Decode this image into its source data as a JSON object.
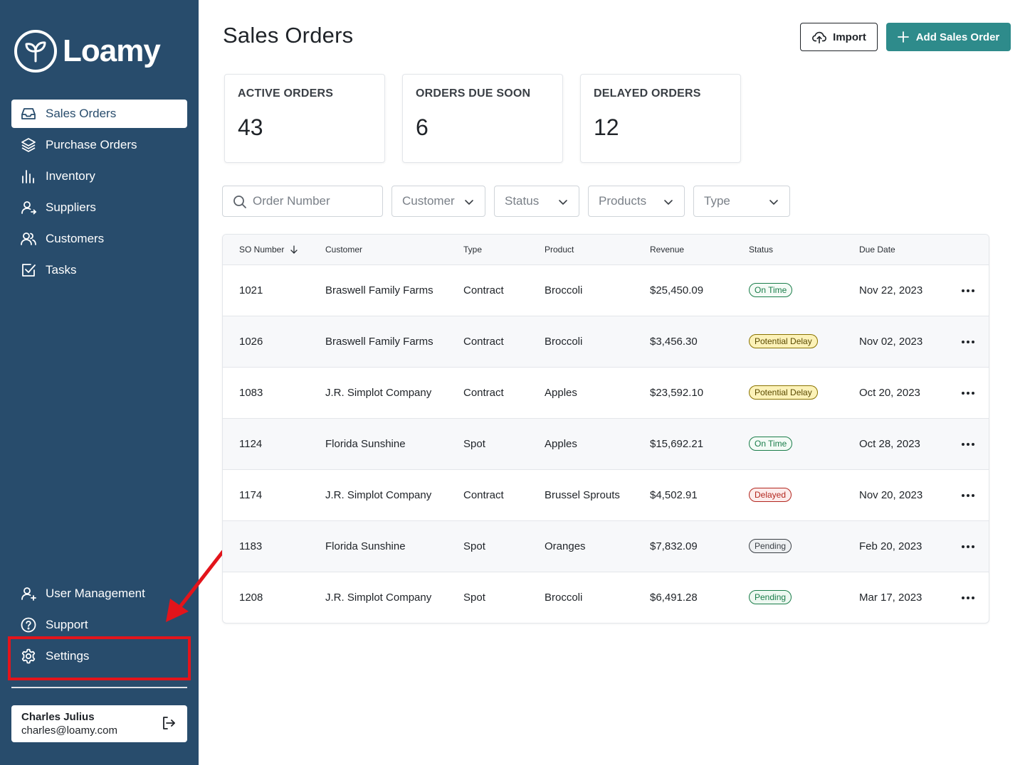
{
  "brand": {
    "name": "Loamy"
  },
  "sidebar": {
    "items": [
      {
        "label": "Sales Orders",
        "icon": "inbox-icon",
        "active": true
      },
      {
        "label": "Purchase Orders",
        "icon": "layers-icon"
      },
      {
        "label": "Inventory",
        "icon": "bar-chart-icon"
      },
      {
        "label": "Suppliers",
        "icon": "user-arrow-icon"
      },
      {
        "label": "Customers",
        "icon": "users-icon"
      },
      {
        "label": "Tasks",
        "icon": "checkbox-icon"
      }
    ],
    "bottom_items": [
      {
        "label": "User Management",
        "icon": "user-plus-icon"
      },
      {
        "label": "Support",
        "icon": "help-circle-icon"
      },
      {
        "label": "Settings",
        "icon": "gear-icon"
      }
    ],
    "user": {
      "name": "Charles Julius",
      "email": "charles@loamy.com"
    }
  },
  "header": {
    "title": "Sales Orders",
    "import_label": "Import",
    "add_label": "Add Sales Order"
  },
  "stats": [
    {
      "label": "ACTIVE ORDERS",
      "value": "43"
    },
    {
      "label": "ORDERS DUE SOON",
      "value": "6"
    },
    {
      "label": "DELAYED ORDERS",
      "value": "12"
    }
  ],
  "filters": {
    "search_placeholder": "Order Number",
    "customer": "Customer",
    "status": "Status",
    "products": "Products",
    "type": "Type"
  },
  "table": {
    "columns": [
      "SO Number",
      "Customer",
      "Type",
      "Product",
      "Revenue",
      "Status",
      "Due Date"
    ],
    "rows": [
      {
        "so": "1021",
        "customer": "Braswell Family Farms",
        "type": "Contract",
        "product": "Broccoli",
        "revenue": "$25,450.09",
        "status": "On Time",
        "due": "Nov 22, 2023"
      },
      {
        "so": "1026",
        "customer": "Braswell Family Farms",
        "type": "Contract",
        "product": "Broccoli",
        "revenue": "$3,456.30",
        "status": "Potential Delay",
        "due": "Nov 02, 2023"
      },
      {
        "so": "1083",
        "customer": "J.R. Simplot Company",
        "type": "Contract",
        "product": "Apples",
        "revenue": "$23,592.10",
        "status": "Potential Delay",
        "due": "Oct 20, 2023"
      },
      {
        "so": "1124",
        "customer": "Florida Sunshine",
        "type": "Spot",
        "product": "Apples",
        "revenue": "$15,692.21",
        "status": "On Time",
        "due": "Oct 28, 2023"
      },
      {
        "so": "1174",
        "customer": "J.R. Simplot Company",
        "type": "Contract",
        "product": "Brussel Sprouts",
        "revenue": "$4,502.91",
        "status": "Delayed",
        "due": "Nov 20, 2023"
      },
      {
        "so": "1183",
        "customer": "Florida Sunshine",
        "type": "Spot",
        "product": "Oranges",
        "revenue": "$7,832.09",
        "status": "Pending",
        "due": "Feb 20, 2023"
      },
      {
        "so": "1208",
        "customer": "J.R. Simplot Company",
        "type": "Spot",
        "product": "Broccoli",
        "revenue": "$6,491.28",
        "status": "Pending",
        "due": "Mar 17, 2023"
      }
    ]
  },
  "colors": {
    "sidebar": "#284c6c",
    "accent": "#2e8b8b",
    "highlight": "#e3141b"
  }
}
